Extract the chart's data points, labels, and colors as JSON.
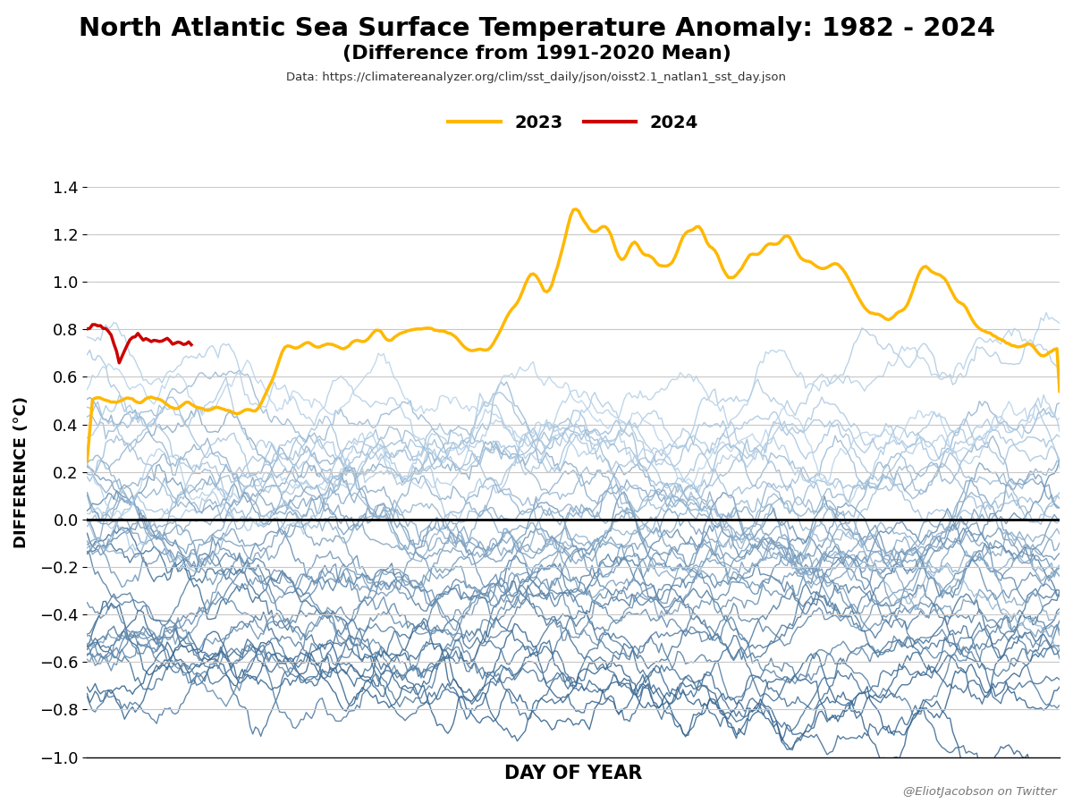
{
  "title_main": "North Atlantic Sea Surface Temperature Anomaly: 1982 - 2024",
  "title_sub": "(Difference from 1991-2020 Mean)",
  "title_source": "Data: https://climatereanalyzer.org/clim/sst_daily/json/oisst2.1_natlan1_sst_day.json",
  "xlabel": "DAY OF YEAR",
  "ylabel": "DIFFERENCE (°C)",
  "credit": "@EliotJacobson on Twitter",
  "ylim": [
    -1.0,
    1.4
  ],
  "yticks": [
    -1.0,
    -0.8,
    -0.6,
    -0.4,
    -0.2,
    0.0,
    0.2,
    0.4,
    0.6,
    0.8,
    1.0,
    1.2,
    1.4
  ],
  "num_days": 365,
  "year_2023_color": "#FFB800",
  "year_2024_color": "#CC0000",
  "background_color": "#FFFFFF",
  "zero_line_color": "#000000",
  "legend_2023": "2023",
  "legend_2024": "2024"
}
